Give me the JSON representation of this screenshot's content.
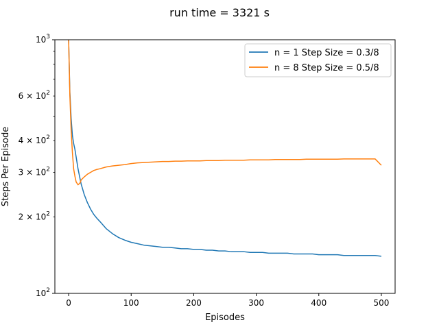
{
  "chart_data": {
    "type": "line",
    "title": "run time = 3321 s",
    "xlabel": "Episodes",
    "ylabel": "Steps Per Episode",
    "yscale": "log",
    "xlim": [
      -22,
      522
    ],
    "ylim": [
      100,
      1000
    ],
    "grid": false,
    "legend_position": "top-right",
    "x_ticks": [
      0,
      100,
      200,
      300,
      400,
      500
    ],
    "x_tick_labels": [
      "0",
      "100",
      "200",
      "300",
      "400",
      "500"
    ],
    "y_major_ticks": [
      100,
      1000
    ],
    "y_major_tick_labels": [
      "10",
      "10"
    ],
    "y_major_tick_exponents": [
      "2",
      "3"
    ],
    "y_minor_ticks": [
      200,
      300,
      400,
      500,
      600,
      700,
      800,
      900
    ],
    "y_minor_labeled": [
      200,
      300,
      400,
      600
    ],
    "y_minor_tick_labels": [
      "2 × 10",
      "3 × 10",
      "4 × 10",
      "6 × 10"
    ],
    "y_minor_tick_exponents": [
      "2",
      "2",
      "2",
      "2"
    ],
    "series": [
      {
        "name": "n = 1 Step Size = 0.3/8",
        "color": "#1f77b4",
        "x": [
          0,
          2,
          4,
          6,
          8,
          10,
          12,
          15,
          18,
          20,
          25,
          30,
          35,
          40,
          45,
          50,
          60,
          70,
          80,
          90,
          100,
          110,
          120,
          130,
          140,
          150,
          160,
          170,
          180,
          190,
          200,
          210,
          220,
          230,
          240,
          250,
          260,
          270,
          280,
          290,
          300,
          310,
          320,
          330,
          340,
          350,
          360,
          370,
          380,
          390,
          400,
          410,
          420,
          430,
          440,
          450,
          460,
          470,
          480,
          490,
          500
        ],
        "values": [
          1000,
          620,
          490,
          420,
          390,
          370,
          345,
          310,
          285,
          270,
          245,
          228,
          215,
          205,
          198,
          192,
          180,
          172,
          166,
          162,
          159,
          157,
          155,
          154,
          153,
          152,
          152,
          151,
          150,
          150,
          149,
          149,
          148,
          148,
          147,
          147,
          146,
          146,
          146,
          145,
          145,
          145,
          144,
          144,
          144,
          144,
          143,
          143,
          143,
          143,
          142,
          142,
          142,
          142,
          141,
          141,
          141,
          141,
          141,
          141,
          140
        ]
      },
      {
        "name": "n = 8 Step Size = 0.5/8",
        "color": "#ff7f0e",
        "x": [
          0,
          2,
          4,
          6,
          8,
          10,
          12,
          15,
          18,
          20,
          25,
          30,
          35,
          40,
          45,
          50,
          60,
          70,
          80,
          90,
          100,
          110,
          120,
          130,
          140,
          150,
          160,
          170,
          180,
          190,
          200,
          210,
          220,
          230,
          240,
          250,
          260,
          270,
          280,
          290,
          300,
          310,
          320,
          330,
          340,
          350,
          360,
          370,
          380,
          390,
          400,
          410,
          420,
          430,
          440,
          450,
          460,
          470,
          480,
          490,
          500
        ],
        "values": [
          1000,
          600,
          440,
          360,
          310,
          290,
          275,
          268,
          272,
          280,
          288,
          295,
          300,
          305,
          308,
          310,
          315,
          318,
          320,
          322,
          325,
          327,
          328,
          329,
          330,
          331,
          331,
          332,
          332,
          333,
          333,
          333,
          334,
          334,
          334,
          335,
          335,
          335,
          335,
          336,
          336,
          336,
          336,
          337,
          337,
          337,
          337,
          337,
          338,
          338,
          338,
          338,
          338,
          338,
          339,
          339,
          339,
          339,
          339,
          339,
          320
        ]
      }
    ]
  }
}
